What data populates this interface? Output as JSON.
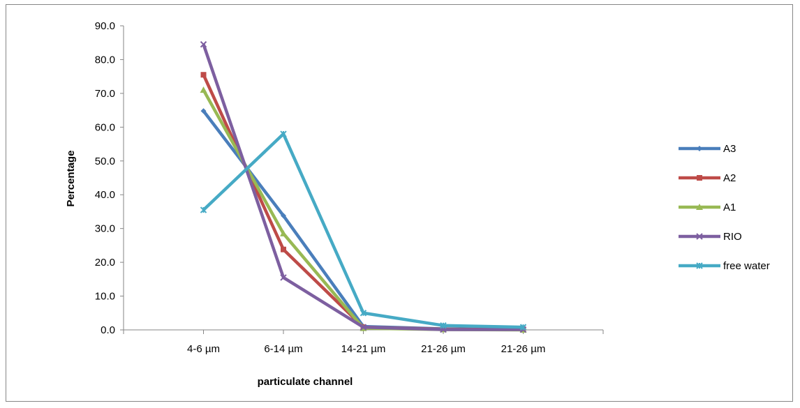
{
  "chart_data": {
    "type": "line",
    "xlabel": "particulate channel",
    "ylabel": "Percentage",
    "categories": [
      "4-6 µm",
      "6-14 µm",
      "14-21 µm",
      "21-26 µm",
      "21-26 µm"
    ],
    "ylim": [
      0,
      90
    ],
    "yticks": [
      "0.0",
      "10.0",
      "20.0",
      "30.0",
      "40.0",
      "50.0",
      "60.0",
      "70.0",
      "80.0",
      "90.0"
    ],
    "grid": false,
    "legend_position": "right",
    "series": [
      {
        "name": "A3",
        "color": "#4a7ebb",
        "marker": "diamond",
        "values": [
          64.8,
          33.8,
          1.0,
          0.3,
          0.1
        ]
      },
      {
        "name": "A2",
        "color": "#be4b48",
        "marker": "square",
        "values": [
          75.5,
          23.8,
          0.8,
          0.2,
          0.1
        ]
      },
      {
        "name": "A1",
        "color": "#98b954",
        "marker": "triangle",
        "values": [
          71.0,
          28.5,
          0.5,
          0.1,
          0.0
        ]
      },
      {
        "name": "RIO",
        "color": "#7d5fa0",
        "marker": "x",
        "values": [
          84.5,
          15.5,
          0.8,
          0.1,
          0.1
        ]
      },
      {
        "name": "free water",
        "color": "#46aac5",
        "marker": "star",
        "values": [
          35.5,
          58.0,
          5.0,
          1.3,
          0.8
        ]
      }
    ]
  }
}
